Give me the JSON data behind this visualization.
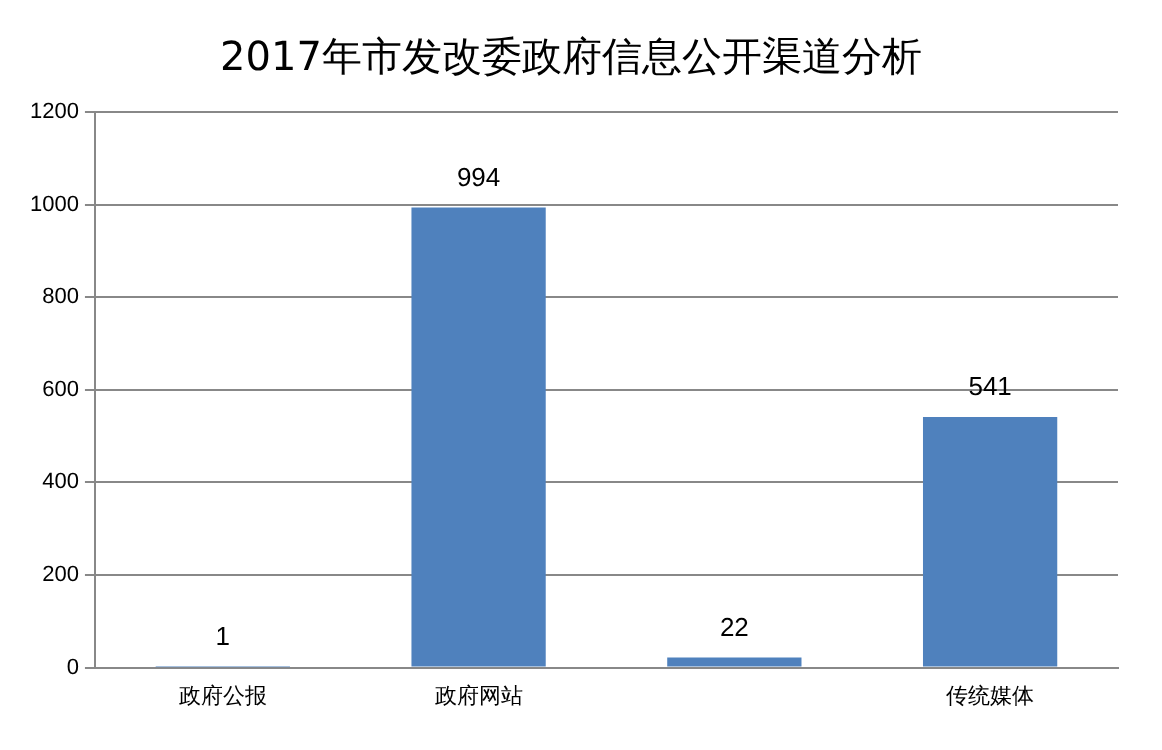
{
  "chart_data": {
    "type": "bar",
    "title": "2017年市发改委政府信息公开渠道分析",
    "categories": [
      "政府公报",
      "政府网站",
      null,
      "传统媒体"
    ],
    "values": [
      1,
      994,
      22,
      541
    ],
    "color": "#4f81bd",
    "ylim": [
      0,
      1200
    ],
    "yticks": [
      0,
      200,
      400,
      600,
      800,
      1000,
      1200
    ],
    "grid": "y",
    "data_labels": true
  }
}
